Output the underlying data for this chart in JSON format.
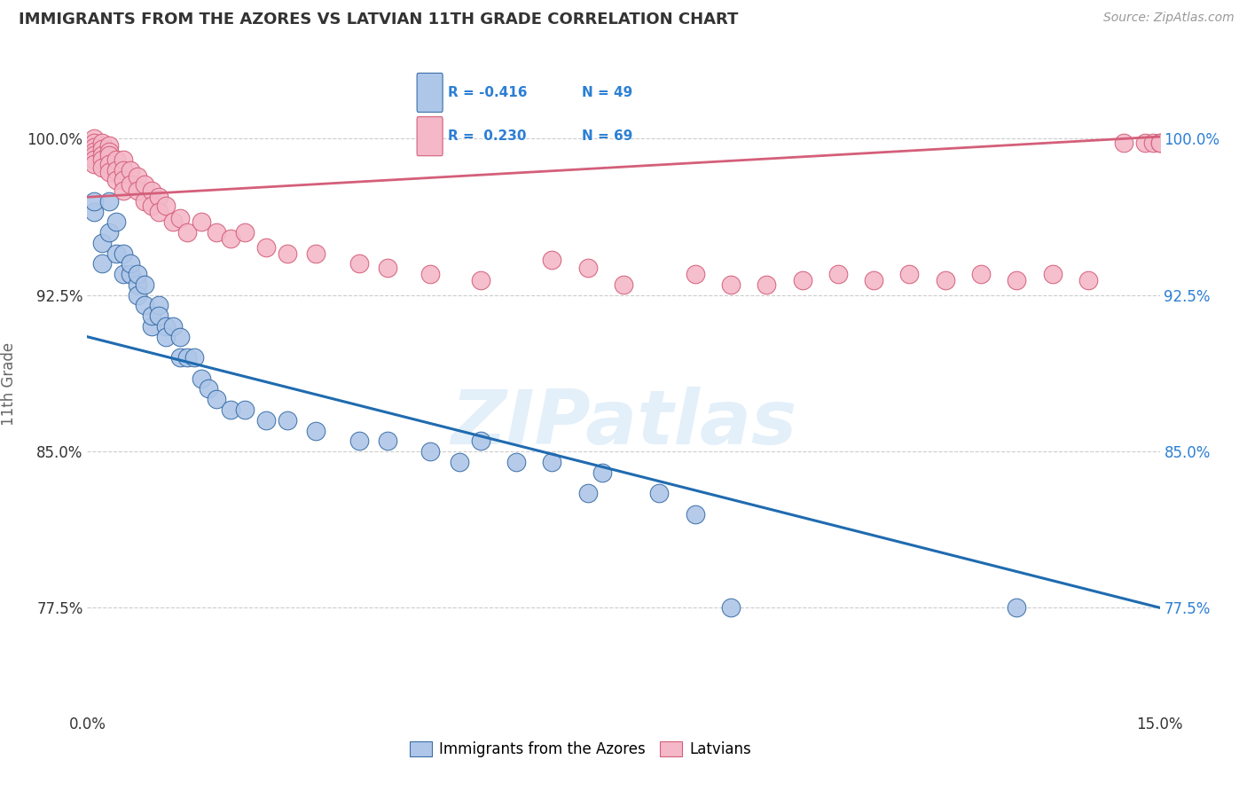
{
  "title": "IMMIGRANTS FROM THE AZORES VS LATVIAN 11TH GRADE CORRELATION CHART",
  "source": "Source: ZipAtlas.com",
  "ylabel": "11th Grade",
  "ytick_labels": [
    "77.5%",
    "85.0%",
    "92.5%",
    "100.0%"
  ],
  "ytick_vals": [
    0.775,
    0.85,
    0.925,
    1.0
  ],
  "xmin": 0.0,
  "xmax": 0.15,
  "ymin": 0.725,
  "ymax": 1.04,
  "legend_blue_r": "R = -0.416",
  "legend_blue_n": "N = 49",
  "legend_pink_r": "R =  0.230",
  "legend_pink_n": "N = 69",
  "legend_blue_label": "Immigrants from the Azores",
  "legend_pink_label": "Latvians",
  "blue_face": "#aec6e8",
  "blue_edge": "#3a6fa8",
  "pink_face": "#f4b8c8",
  "pink_edge": "#d45f7a",
  "blue_line": "#1f6bb0",
  "pink_line": "#d45f7a",
  "blue_x": [
    0.001,
    0.001,
    0.002,
    0.002,
    0.003,
    0.003,
    0.004,
    0.004,
    0.005,
    0.005,
    0.006,
    0.006,
    0.007,
    0.007,
    0.007,
    0.008,
    0.008,
    0.009,
    0.009,
    0.01,
    0.01,
    0.011,
    0.011,
    0.012,
    0.013,
    0.013,
    0.014,
    0.015,
    0.016,
    0.017,
    0.018,
    0.02,
    0.022,
    0.025,
    0.028,
    0.032,
    0.038,
    0.042,
    0.048,
    0.052,
    0.055,
    0.06,
    0.065,
    0.07,
    0.072,
    0.08,
    0.085,
    0.09,
    0.13
  ],
  "blue_y": [
    0.965,
    0.97,
    0.95,
    0.94,
    0.97,
    0.955,
    0.945,
    0.96,
    0.935,
    0.945,
    0.935,
    0.94,
    0.93,
    0.925,
    0.935,
    0.93,
    0.92,
    0.91,
    0.915,
    0.92,
    0.915,
    0.91,
    0.905,
    0.91,
    0.905,
    0.895,
    0.895,
    0.895,
    0.885,
    0.88,
    0.875,
    0.87,
    0.87,
    0.865,
    0.865,
    0.86,
    0.855,
    0.855,
    0.85,
    0.845,
    0.855,
    0.845,
    0.845,
    0.83,
    0.84,
    0.83,
    0.82,
    0.775,
    0.775
  ],
  "pink_x": [
    0.001,
    0.001,
    0.001,
    0.001,
    0.001,
    0.001,
    0.001,
    0.002,
    0.002,
    0.002,
    0.002,
    0.002,
    0.003,
    0.003,
    0.003,
    0.003,
    0.003,
    0.004,
    0.004,
    0.004,
    0.005,
    0.005,
    0.005,
    0.005,
    0.006,
    0.006,
    0.007,
    0.007,
    0.008,
    0.008,
    0.009,
    0.009,
    0.01,
    0.01,
    0.011,
    0.012,
    0.013,
    0.014,
    0.016,
    0.018,
    0.02,
    0.022,
    0.025,
    0.028,
    0.032,
    0.038,
    0.042,
    0.048,
    0.055,
    0.065,
    0.07,
    0.075,
    0.085,
    0.09,
    0.095,
    0.1,
    0.105,
    0.11,
    0.115,
    0.12,
    0.125,
    0.13,
    0.135,
    0.14,
    0.145,
    0.148,
    0.149,
    0.15,
    0.15
  ],
  "pink_y": [
    1.0,
    0.998,
    0.996,
    0.994,
    0.992,
    0.99,
    0.988,
    0.998,
    0.995,
    0.992,
    0.99,
    0.986,
    0.997,
    0.994,
    0.992,
    0.988,
    0.984,
    0.99,
    0.985,
    0.98,
    0.99,
    0.985,
    0.98,
    0.975,
    0.985,
    0.978,
    0.982,
    0.975,
    0.978,
    0.97,
    0.975,
    0.968,
    0.972,
    0.965,
    0.968,
    0.96,
    0.962,
    0.955,
    0.96,
    0.955,
    0.952,
    0.955,
    0.948,
    0.945,
    0.945,
    0.94,
    0.938,
    0.935,
    0.932,
    0.942,
    0.938,
    0.93,
    0.935,
    0.93,
    0.93,
    0.932,
    0.935,
    0.932,
    0.935,
    0.932,
    0.935,
    0.932,
    0.935,
    0.932,
    0.998,
    0.998,
    0.998,
    0.998,
    0.998
  ],
  "watermark": "ZIPatlas",
  "grid_color": "#cccccc",
  "bg_color": "#ffffff",
  "text_color": "#333333",
  "right_tick_color": "#2b7fd4"
}
